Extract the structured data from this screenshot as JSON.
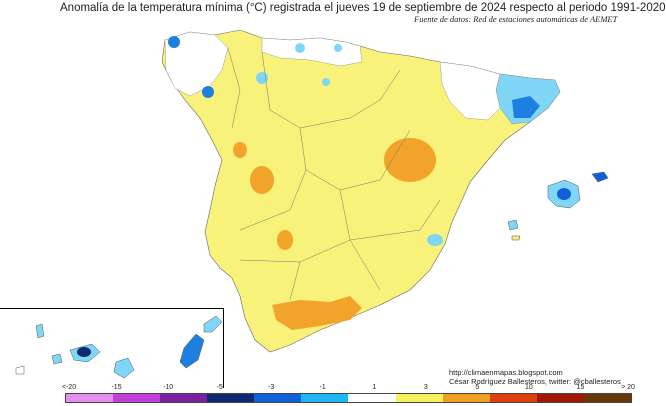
{
  "title": "Anomalía de la temperatura mínima (°C) registrada el jueves 19 de septiembre de 2024 respecto al periodo 1991-2020",
  "subtitle": "Fuente de datos: Red de estaciones automáticas de AEMET",
  "credits": {
    "url": "http://climaenmapas.blogspot.com",
    "author": "César Rodríguez Ballesteros, twitter: @cballesteros"
  },
  "legend": {
    "ticks": [
      "<-20",
      "-15",
      "-10",
      "-5",
      "-3",
      "-1",
      "1",
      "3",
      "5",
      "10",
      "15",
      "> 20"
    ],
    "colors": [
      "#e88cf0",
      "#c040d8",
      "#7a20a0",
      "#102a70",
      "#1060d8",
      "#20b8f0",
      "#ffffff",
      "#f8f060",
      "#f0a020",
      "#e04010",
      "#a01808",
      "#6a3808"
    ]
  }
}
